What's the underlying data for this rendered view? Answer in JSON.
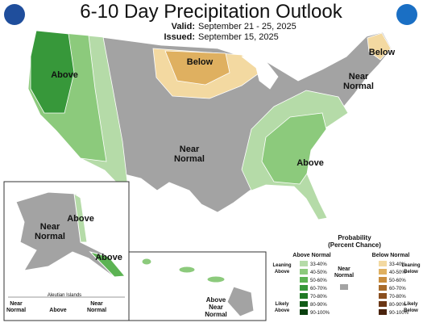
{
  "header": {
    "title": "6-10 Day Precipitation Outlook",
    "valid_label": "Valid:",
    "valid": "September 21 - 25, 2025",
    "issued_label": "Issued:",
    "issued": "September 15, 2025"
  },
  "map_labels": [
    {
      "lines": [
        "Above"
      ]
    },
    {
      "lines": [
        "Below"
      ]
    },
    {
      "lines": [
        "Below"
      ]
    },
    {
      "lines": [
        "Near",
        "Normal"
      ]
    },
    {
      "lines": [
        "Near",
        "Normal"
      ]
    },
    {
      "lines": [
        "Above"
      ]
    },
    {
      "lines": [
        "Above"
      ]
    },
    {
      "lines": [
        "Near",
        "Normal"
      ]
    },
    {
      "lines": [
        "Above"
      ]
    },
    {
      "lines": [
        "Above",
        "Near",
        "Normal"
      ]
    }
  ],
  "aleutians": {
    "title": "Aleutian Islands",
    "labels": [
      {
        "lines": [
          "Near",
          "Normal"
        ]
      },
      {
        "lines": [
          "Above"
        ]
      },
      {
        "lines": [
          "Near",
          "Normal"
        ]
      }
    ]
  },
  "legend": {
    "title": [
      "Probability",
      "(Percent Chance)"
    ],
    "above": {
      "heading": "Above Normal",
      "bins": [
        {
          "label": "33-40%",
          "color": "#b5dba8"
        },
        {
          "label": "40-50%",
          "color": "#8cca7c"
        },
        {
          "label": "50-60%",
          "color": "#5cb353"
        },
        {
          "label": "60-70%",
          "color": "#37983a"
        },
        {
          "label": "70-80%",
          "color": "#217a26"
        },
        {
          "label": "80-90%",
          "color": "#125c18"
        },
        {
          "label": "90-100%",
          "color": "#093f0e"
        }
      ]
    },
    "below": {
      "heading": "Below Normal",
      "bins": [
        {
          "label": "33-40%",
          "color": "#f3d9a1"
        },
        {
          "label": "40-50%",
          "color": "#dfb060"
        },
        {
          "label": "50-60%",
          "color": "#c98d3d"
        },
        {
          "label": "60-70%",
          "color": "#a86b2b"
        },
        {
          "label": "70-80%",
          "color": "#8a4f1f"
        },
        {
          "label": "80-90%",
          "color": "#6b3716"
        },
        {
          "label": "90-100%",
          "color": "#4a230d"
        }
      ]
    },
    "near": {
      "lines": [
        "Near",
        "Normal"
      ],
      "color": "#a3a3a3"
    },
    "leaning_above": [
      "Leaning",
      "Above"
    ],
    "likely_above": [
      "Likely",
      "Above"
    ],
    "leaning_below": [
      "Leaning",
      "Below"
    ],
    "likely_below": [
      "Likely",
      "Below"
    ]
  }
}
